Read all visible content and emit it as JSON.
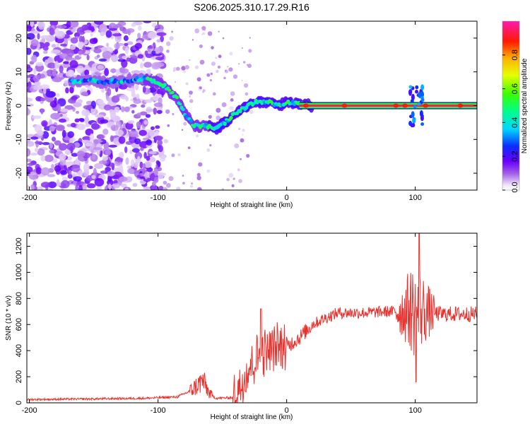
{
  "title": "S206.2025.310.17.29.R16",
  "chart_data": [
    {
      "type": "heatmap",
      "name": "spectrogram",
      "xlabel": "Height of straight line (km)",
      "ylabel": "Frequency (Hz)",
      "xlim": [
        -202,
        148
      ],
      "ylim": [
        -25,
        25
      ],
      "xticks": [
        -200,
        -100,
        0,
        100
      ],
      "yticks": [
        -20,
        -10,
        0,
        10,
        20
      ],
      "colorbar": {
        "label": "Normalized spectral amplitude",
        "range": [
          0,
          1
        ],
        "ticks": [
          0.0,
          0.2,
          0.4,
          0.6,
          0.8
        ]
      },
      "ridge": {
        "x": [
          -168,
          -155,
          -140,
          -125,
          -110,
          -95,
          -85,
          -78,
          -72,
          -62,
          -55,
          -48,
          -42,
          -35,
          -25,
          -15,
          -5,
          0,
          10,
          20,
          148
        ],
        "freq": [
          7,
          7.5,
          7,
          7.5,
          8,
          6,
          2,
          -3,
          -6,
          -6,
          -7,
          -5,
          -3,
          -1,
          1,
          1,
          0,
          1,
          0.5,
          0,
          0
        ]
      },
      "strong_spots": [
        {
          "x": 15,
          "freq": 0
        },
        {
          "x": 45,
          "freq": 0
        },
        {
          "x": 85,
          "freq": 0
        },
        {
          "x": 92,
          "freq": 0
        },
        {
          "x": 108,
          "freq": 0
        },
        {
          "x": 135,
          "freq": 0
        }
      ]
    },
    {
      "type": "line",
      "name": "snr",
      "xlabel": "Height of straight line (km)",
      "ylabel": "SNR (10 * v/v)",
      "xlim": [
        -202,
        148
      ],
      "ylim": [
        0,
        1300
      ],
      "xticks": [
        -200,
        -100,
        0,
        100
      ],
      "yticks": [
        0,
        200,
        400,
        600,
        800,
        1000,
        1200
      ],
      "color": "#e8322e",
      "envelope": {
        "x": [
          -202,
          -150,
          -110,
          -85,
          -75,
          -65,
          -60,
          -55,
          -42,
          -35,
          -28,
          -20,
          -10,
          0,
          10,
          20,
          30,
          40,
          60,
          80,
          90,
          95,
          100,
          102,
          106,
          112,
          120,
          148
        ],
        "y": [
          25,
          30,
          35,
          45,
          90,
          170,
          70,
          35,
          40,
          150,
          300,
          380,
          420,
          430,
          500,
          600,
          650,
          690,
          690,
          700,
          700,
          720,
          700,
          690,
          710,
          690,
          680,
          680
        ]
      },
      "peaks": [
        {
          "x": 103,
          "y": 1300
        },
        {
          "x": 100,
          "y": 160
        },
        {
          "x": -20,
          "y": 720
        },
        {
          "x": -28,
          "y": 660
        }
      ]
    }
  ]
}
